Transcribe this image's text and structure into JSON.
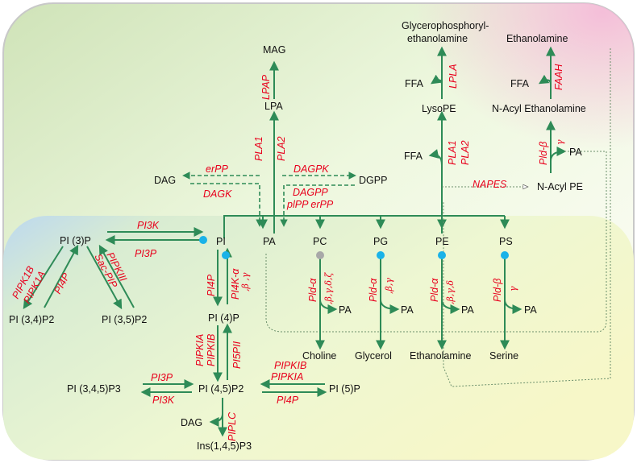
{
  "metabolites": {
    "glycerophosphoryl": "Glycerophosphoryl-",
    "ethanolamine_gp": "ethanolamine",
    "ethanolamine_top": "Ethanolamine",
    "mag": "MAG",
    "lpa": "LPA",
    "ffa": "FFA",
    "lysope": "LysoPE",
    "n_acyl_ethanolamine": "N-Acyl Ethanolamine",
    "pa": "PA",
    "dag": "DAG",
    "dgpp": "DGPP",
    "n_acyl_pe": "N-Acyl PE",
    "pi3p": "PI (3)P",
    "pi": "PI",
    "pc": "PC",
    "pg": "PG",
    "pe": "PE",
    "ps": "PS",
    "pi34p2": "PI (3,4)P2",
    "pi35p2": "PI (3,5)P2",
    "pi4p": "PI (4)P",
    "choline": "Choline",
    "glycerol": "Glycerol",
    "ethanolamine_bottom": "Ethanolamine",
    "serine": "Serine",
    "pi345p3": "PI (3,4,5)P3",
    "pi45p2": "PI (4,5)P2",
    "pi5p": "PI (5)P",
    "ins145p3": "Ins(1,4,5)P3"
  },
  "enzymes": {
    "lpap": "LPAP",
    "pla1": "PLA1",
    "pla2": "PLA2",
    "lpla": "LPLA",
    "faah": "FAAH",
    "pld_beta": "Pld-β",
    "gamma": "γ",
    "erpp": "erPP",
    "dagk": "DAGK",
    "dagpk": "DAGPK",
    "dagpp": "DAGPP",
    "plpp_erpp": "plPP erPP",
    "napes": "NAPES",
    "pi3k": "PI3K",
    "pi3p_enz": "PI3P",
    "pipk1b": "PIPK1B",
    "pipk1a": "PIPK1A",
    "pi4p_enz": "PI4P",
    "sac_pip": "Sac-PIP",
    "pipkiii": "PIPKIII",
    "pi4k_alpha": "PI4K-α",
    "beta_gamma": ",β ,γ",
    "pld_alpha": "Pld-α",
    "beta_gamma_delta_zeta": ",β,γ,δ,ζ",
    "beta_gamma2": ",β,γ",
    "beta_gamma_delta": ",β,γ,δ",
    "pipkia": "PIPKIA",
    "pipkib": "PIPKIB",
    "pi5pii": "PI5PII",
    "piplc": "PIPLC"
  },
  "colors": {
    "arrow": "#2e8b57",
    "enzyme_text": "#e8001c",
    "dot_blue": "#1ab2e8",
    "dot_grey": "#a8a8a8"
  }
}
